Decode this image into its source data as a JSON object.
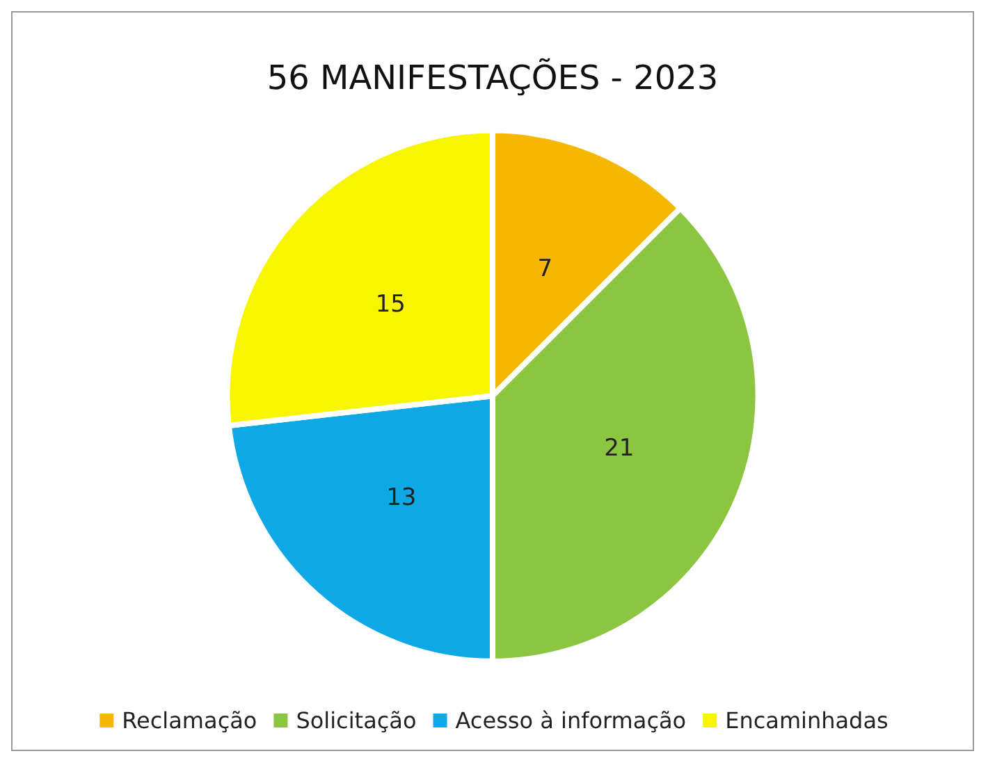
{
  "chart_data": {
    "type": "pie",
    "title": "56 MANIFESTAÇÕES - 2023",
    "categories": [
      "Reclamação",
      "Solicitação",
      "Acesso à informação",
      "Encaminhadas"
    ],
    "values": [
      7,
      21,
      13,
      15
    ],
    "colors": [
      "#f5b700",
      "#8cc540",
      "#0ea8e6",
      "#f7f500"
    ],
    "data_labels": true,
    "legend": "bottom"
  }
}
